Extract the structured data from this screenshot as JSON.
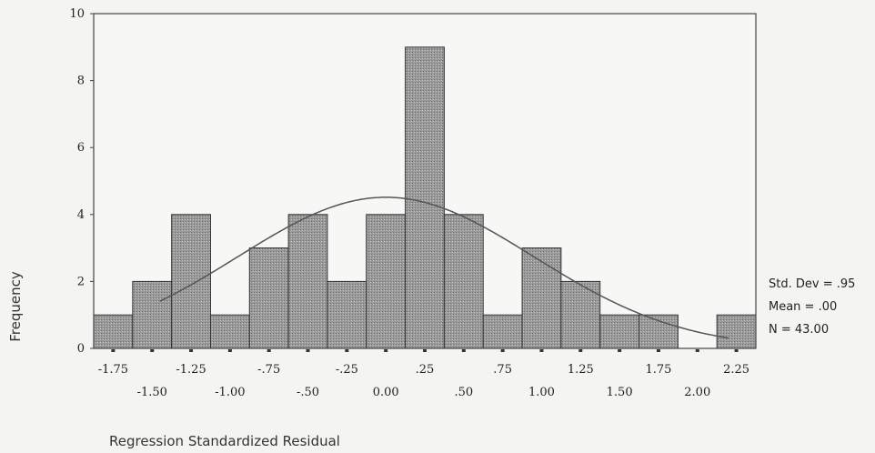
{
  "chart_data": {
    "type": "bar",
    "subtype": "histogram",
    "xlabel": "Regression Standardized Residual",
    "ylabel": "Frequency",
    "ylim": [
      0,
      10
    ],
    "yticks": [
      "0",
      "2",
      "4",
      "6",
      "8",
      "10"
    ],
    "bin_width": 0.25,
    "categories": [
      -1.75,
      -1.5,
      -1.25,
      -1.0,
      -0.75,
      -0.5,
      -0.25,
      0.0,
      0.25,
      0.5,
      0.75,
      1.0,
      1.25,
      1.5,
      1.75,
      2.0,
      2.25
    ],
    "values": [
      1,
      2,
      4,
      1,
      3,
      4,
      2,
      4,
      9,
      4,
      1,
      3,
      2,
      1,
      1,
      0,
      1
    ],
    "xtick_labels_top": [
      "-1.75",
      "-1.25",
      "-.75",
      "-.25",
      ".25",
      ".75",
      "1.25",
      "1.75",
      "2.25"
    ],
    "xtick_labels_bottom": [
      "-1.50",
      "-1.00",
      "-.50",
      "0.00",
      ".50",
      "1.00",
      "1.50",
      "2.00"
    ],
    "normal_curve": {
      "mean": 0.0,
      "std_dev": 0.95,
      "n": 43
    },
    "legend_stats": [
      "Std. Dev = .95",
      "Mean = .00",
      "N = 43.00"
    ],
    "grid": false,
    "bar_color": "#9a9a9a",
    "curve_color": "#555555"
  }
}
